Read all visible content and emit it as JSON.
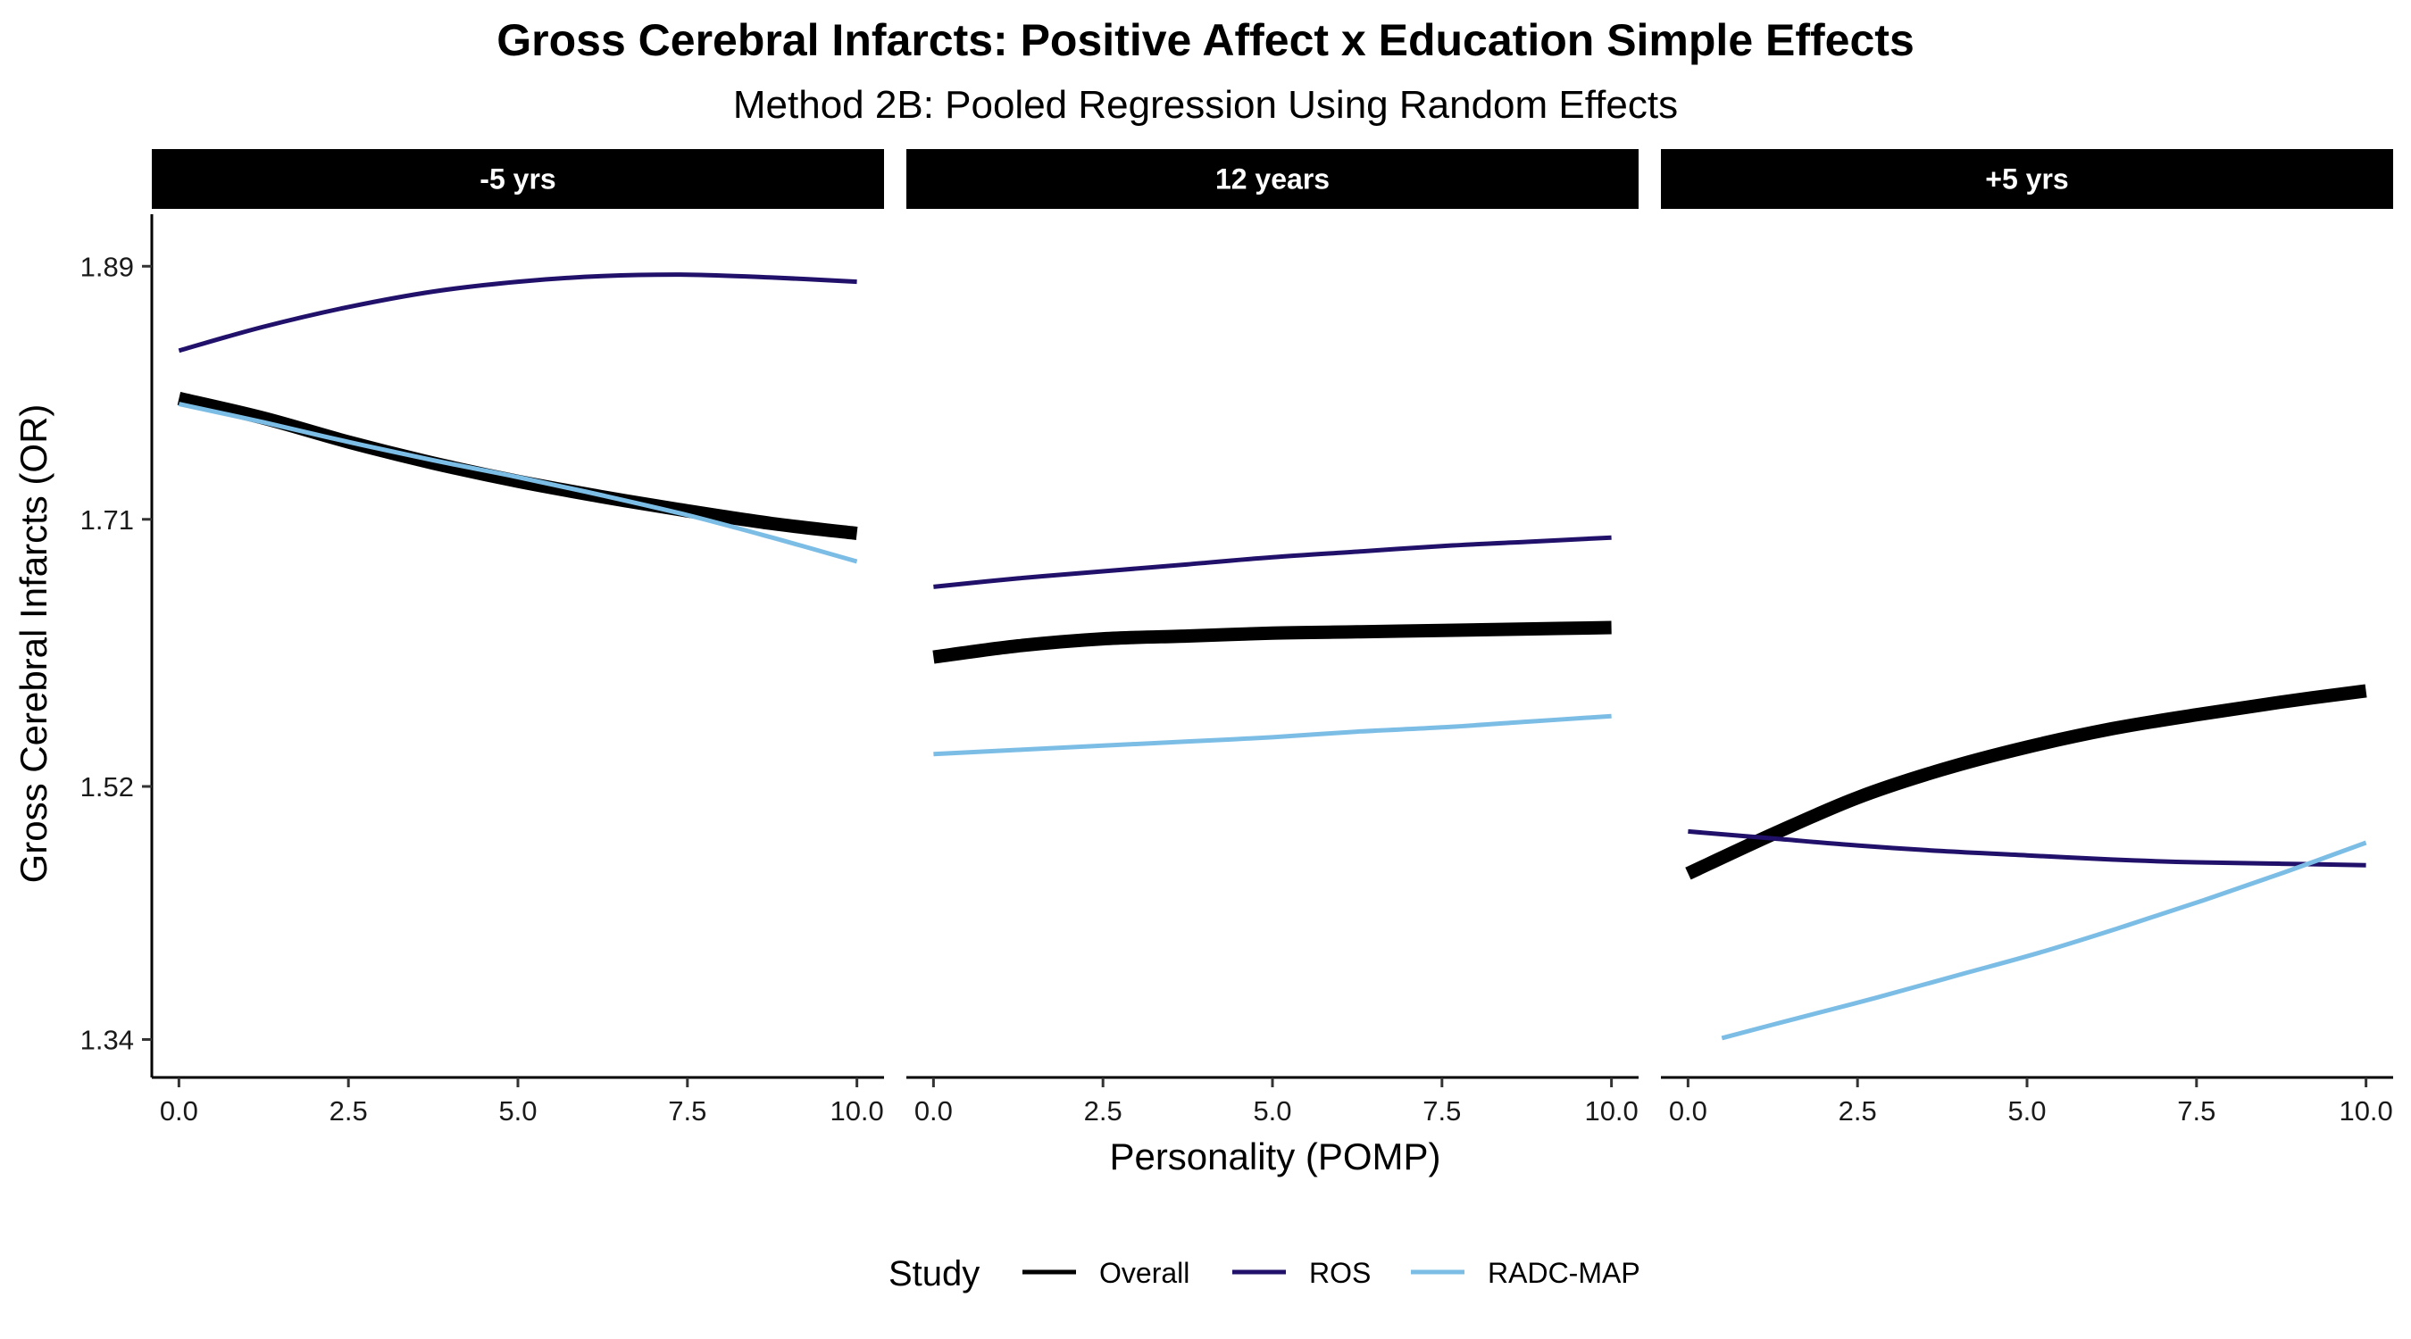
{
  "chart_data": {
    "type": "line",
    "title": "Gross Cerebral Infarcts: Positive Affect x Education Simple Effects",
    "subtitle": "Method 2B: Pooled Regression Using Random Effects",
    "xlabel": "Personality (POMP)",
    "ylabel": "Gross Cerebral Infarcts (OR)",
    "xlim": [
      -0.4,
      10.4
    ],
    "ylim": [
      1.313,
      1.927
    ],
    "x_ticks": [
      0,
      2.5,
      5,
      7.5,
      10
    ],
    "x_tick_labels": [
      "0.0",
      "2.5",
      "5.0",
      "7.5",
      "10.0"
    ],
    "y_ticks": [
      1.34,
      1.52,
      1.71,
      1.89
    ],
    "y_tick_labels": [
      "1.34",
      "1.52",
      "1.71",
      "1.89"
    ],
    "grid": false,
    "legend": {
      "title": "Study",
      "position": "bottom",
      "entries": [
        {
          "name": "Overall",
          "color": "#000000"
        },
        {
          "name": "ROS",
          "color": "#21116b"
        },
        {
          "name": "RADC-MAP",
          "color": "#7cbde6"
        }
      ]
    },
    "panels": [
      {
        "label": "-5 yrs",
        "series": [
          {
            "name": "Overall",
            "color": "#000000",
            "x": [
              0,
              1.25,
              2.5,
              3.75,
              5,
              6.25,
              7.5,
              8.75,
              10
            ],
            "y": [
              1.796,
              1.782,
              1.765,
              1.75,
              1.737,
              1.726,
              1.716,
              1.707,
              1.7
            ]
          },
          {
            "name": "ROS",
            "color": "#21116b",
            "x": [
              0,
              1.25,
              2.5,
              3.75,
              5,
              6.25,
              7.5,
              8.75,
              10
            ],
            "y": [
              1.83,
              1.847,
              1.861,
              1.872,
              1.879,
              1.883,
              1.884,
              1.882,
              1.879
            ]
          },
          {
            "name": "RADC-MAP",
            "color": "#7cbde6",
            "x": [
              0,
              1.25,
              2.5,
              3.75,
              5,
              6.25,
              7.5,
              8.75,
              10
            ],
            "y": [
              1.792,
              1.779,
              1.765,
              1.752,
              1.74,
              1.727,
              1.713,
              1.697,
              1.68
            ]
          }
        ]
      },
      {
        "label": "12 years",
        "series": [
          {
            "name": "Overall",
            "color": "#000000",
            "x": [
              0,
              1.25,
              2.5,
              3.75,
              5,
              6.25,
              7.5,
              8.75,
              10
            ],
            "y": [
              1.612,
              1.62,
              1.625,
              1.627,
              1.629,
              1.63,
              1.631,
              1.632,
              1.633
            ]
          },
          {
            "name": "ROS",
            "color": "#21116b",
            "x": [
              0,
              1.25,
              2.5,
              3.75,
              5,
              6.25,
              7.5,
              8.75,
              10
            ],
            "y": [
              1.662,
              1.668,
              1.673,
              1.678,
              1.683,
              1.687,
              1.691,
              1.694,
              1.697
            ]
          },
          {
            "name": "RADC-MAP",
            "color": "#7cbde6",
            "x": [
              0,
              1.25,
              2.5,
              3.75,
              5,
              6.25,
              7.5,
              8.75,
              10
            ],
            "y": [
              1.543,
              1.546,
              1.549,
              1.552,
              1.555,
              1.559,
              1.562,
              1.566,
              1.57
            ]
          }
        ]
      },
      {
        "label": "+5 yrs",
        "series": [
          {
            "name": "Overall",
            "color": "#000000",
            "x": [
              0,
              1.25,
              2.5,
              3.75,
              5,
              6.25,
              7.5,
              8.75,
              10
            ],
            "y": [
              1.458,
              1.486,
              1.512,
              1.532,
              1.548,
              1.561,
              1.571,
              1.58,
              1.588
            ]
          },
          {
            "name": "ROS",
            "color": "#21116b",
            "x": [
              0,
              1.25,
              2.5,
              3.75,
              5,
              6.25,
              7.5,
              8.75,
              10
            ],
            "y": [
              1.488,
              1.483,
              1.478,
              1.474,
              1.471,
              1.468,
              1.466,
              1.465,
              1.464
            ]
          },
          {
            "name": "RADC-MAP",
            "color": "#7cbde6",
            "x": [
              0.5,
              1.6,
              2.8,
              4.0,
              5.2,
              6.4,
              7.6,
              8.8,
              10
            ],
            "y": [
              1.341,
              1.355,
              1.37,
              1.386,
              1.402,
              1.42,
              1.439,
              1.459,
              1.48
            ]
          }
        ]
      }
    ]
  }
}
